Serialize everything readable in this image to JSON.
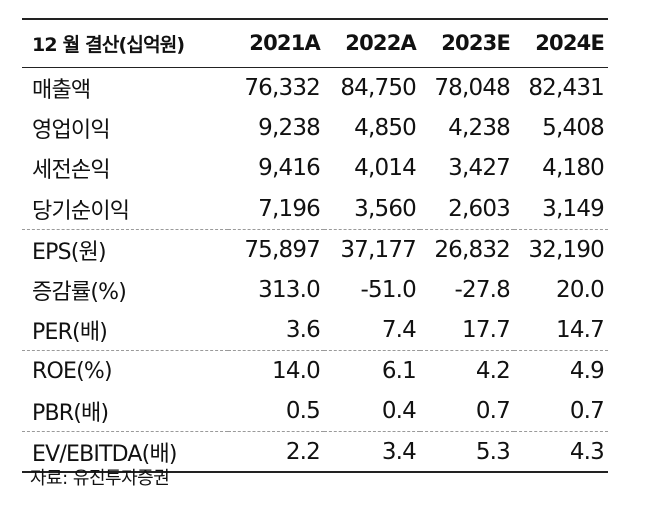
{
  "table": {
    "header": {
      "label": "12 월 결산(십억원)",
      "years": [
        "2021A",
        "2022A",
        "2023E",
        "2024E"
      ]
    },
    "rows": [
      {
        "label": "매출액",
        "values": [
          "76,332",
          "84,750",
          "78,048",
          "82,431"
        ]
      },
      {
        "label": "영업이익",
        "values": [
          "9,238",
          "4,850",
          "4,238",
          "5,408"
        ]
      },
      {
        "label": "세전손익",
        "values": [
          "9,416",
          "4,014",
          "3,427",
          "4,180"
        ]
      },
      {
        "label": "당기순이익",
        "values": [
          "7,196",
          "3,560",
          "2,603",
          "3,149"
        ]
      },
      {
        "label": "EPS(원)",
        "values": [
          "75,897",
          "37,177",
          "26,832",
          "32,190"
        ]
      },
      {
        "label": "증감률(%)",
        "values": [
          "313.0",
          "-51.0",
          "-27.8",
          "20.0"
        ]
      },
      {
        "label": "PER(배)",
        "values": [
          "3.6",
          "7.4",
          "17.7",
          "14.7"
        ]
      },
      {
        "label": "ROE(%)",
        "values": [
          "14.0",
          "6.1",
          "4.2",
          "4.9"
        ]
      },
      {
        "label": "PBR(배)",
        "values": [
          "0.5",
          "0.4",
          "0.7",
          "0.7"
        ]
      },
      {
        "label": "EV/EBITDA(배)",
        "values": [
          "2.2",
          "3.4",
          "5.3",
          "4.3"
        ]
      }
    ]
  },
  "source": "자료: 유진투자증권"
}
